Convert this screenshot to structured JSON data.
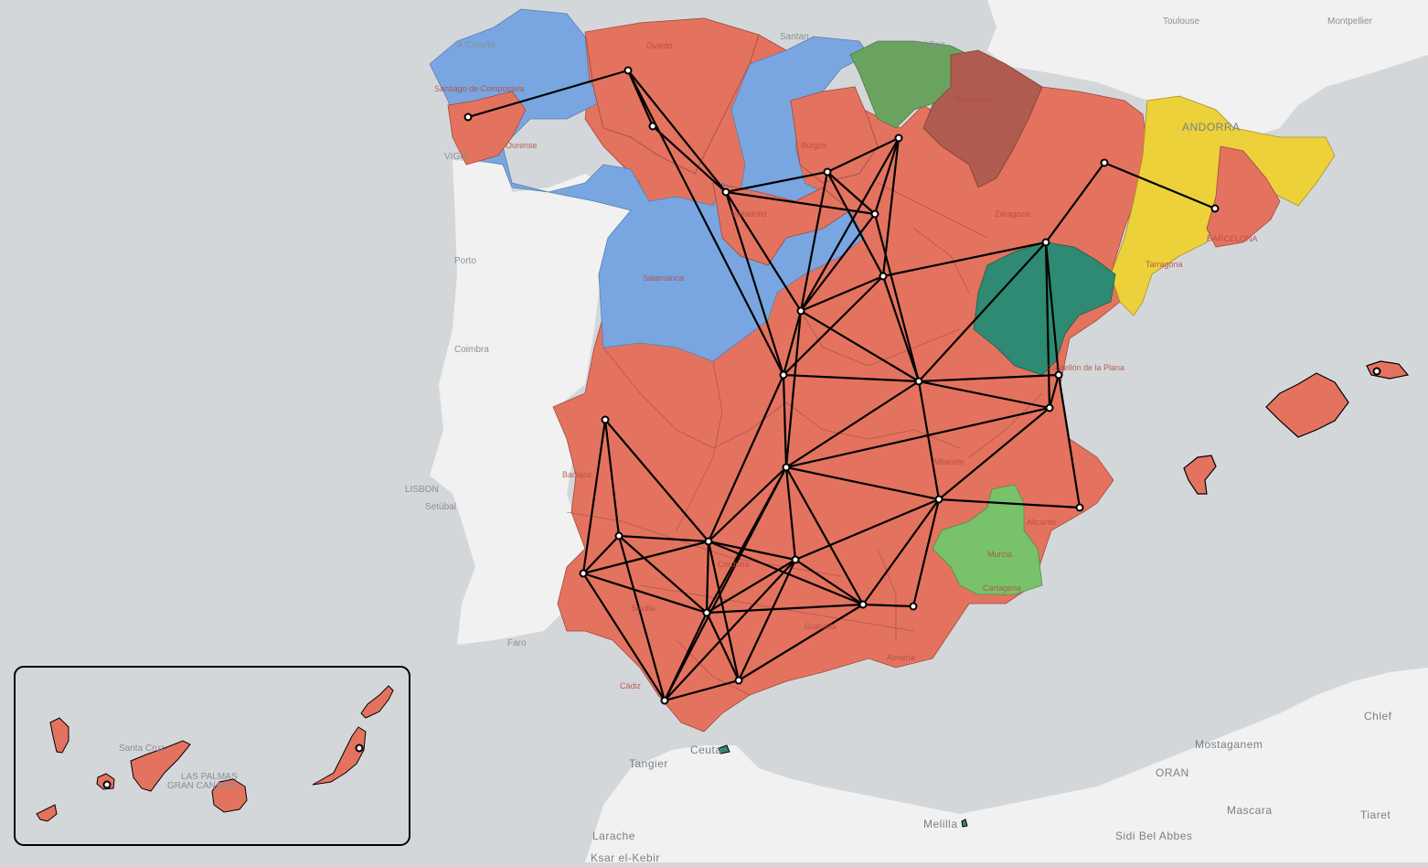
{
  "colors": {
    "sea": "#d4d7da",
    "land": "#f1f1f1",
    "group_red": "#e3735f",
    "group_blue": "#79a6e0",
    "group_green_dark": "#6aa260",
    "group_brown": "#b05b4f",
    "group_yellow": "#ecd13b",
    "group_teal": "#2e8a72",
    "group_green_light": "#78c36a",
    "edge": "#000000",
    "node": "#ffffff"
  },
  "city_labels": [
    {
      "id": "toulouse",
      "text": "Toulouse"
    },
    {
      "id": "montpellier",
      "text": "Montpellier"
    },
    {
      "id": "andorra",
      "text": "ANDORRA"
    },
    {
      "id": "porto",
      "text": "Porto"
    },
    {
      "id": "coimbra",
      "text": "Coimbra"
    },
    {
      "id": "lisbon",
      "text": "LISBON"
    },
    {
      "id": "setubal",
      "text": "Setúbal"
    },
    {
      "id": "faro",
      "text": "Faro"
    },
    {
      "id": "tangier",
      "text": "Tangier"
    },
    {
      "id": "ceuta",
      "text": "Ceuta"
    },
    {
      "id": "larache",
      "text": "Larache"
    },
    {
      "id": "ksar",
      "text": "Ksar el-Kebir"
    },
    {
      "id": "melilla",
      "text": "Melilla"
    },
    {
      "id": "sidi",
      "text": "Sidi Bel Abbes"
    },
    {
      "id": "oran",
      "text": "ORAN"
    },
    {
      "id": "mostaganem",
      "text": "Mostaganem"
    },
    {
      "id": "mascara",
      "text": "Mascara"
    },
    {
      "id": "tiaret",
      "text": "Tiaret"
    },
    {
      "id": "chlef",
      "text": "Chlef"
    },
    {
      "id": "vigo",
      "text": "VIGO"
    },
    {
      "id": "acoruna",
      "text": "A Coruña"
    },
    {
      "id": "santander",
      "text": "Santan"
    },
    {
      "id": "donostia",
      "text": "ia / San"
    },
    {
      "id": "santacruz",
      "text": "Santa Cruz"
    },
    {
      "id": "laspalmas",
      "text": "LAS PALMAS"
    },
    {
      "id": "grancanaria",
      "text": "GRAN CANARIA"
    }
  ],
  "region_labels": [
    {
      "id": "oviedo",
      "text": "Oviedo"
    },
    {
      "id": "burgos",
      "text": "Burgos"
    },
    {
      "id": "pamplona",
      "text": "Pamplona"
    },
    {
      "id": "zaragoza",
      "text": "Zaragoza"
    },
    {
      "id": "barcelona",
      "text": "BARCELONA"
    },
    {
      "id": "tarragona",
      "text": "Tarragona"
    },
    {
      "id": "salamanca",
      "text": "Salamanca"
    },
    {
      "id": "valladolid",
      "text": "Valladolid"
    },
    {
      "id": "ourense",
      "text": "Ourense"
    },
    {
      "id": "santiago",
      "text": "Santiago de Compostela"
    },
    {
      "id": "badajoz",
      "text": "Badajoz"
    },
    {
      "id": "castellon",
      "text": "Castellón de la Plana"
    },
    {
      "id": "albacete",
      "text": "Albacete"
    },
    {
      "id": "alicante",
      "text": "Alicante"
    },
    {
      "id": "murcia",
      "text": "Murcia"
    },
    {
      "id": "cartagena",
      "text": "Cartagena"
    },
    {
      "id": "cordoba",
      "text": "Córdoba"
    },
    {
      "id": "sevilla",
      "text": "Sevilla"
    },
    {
      "id": "granada",
      "text": "Granada"
    },
    {
      "id": "almeria",
      "text": "Almería"
    },
    {
      "id": "cadiz",
      "text": "Cádiz"
    }
  ]
}
